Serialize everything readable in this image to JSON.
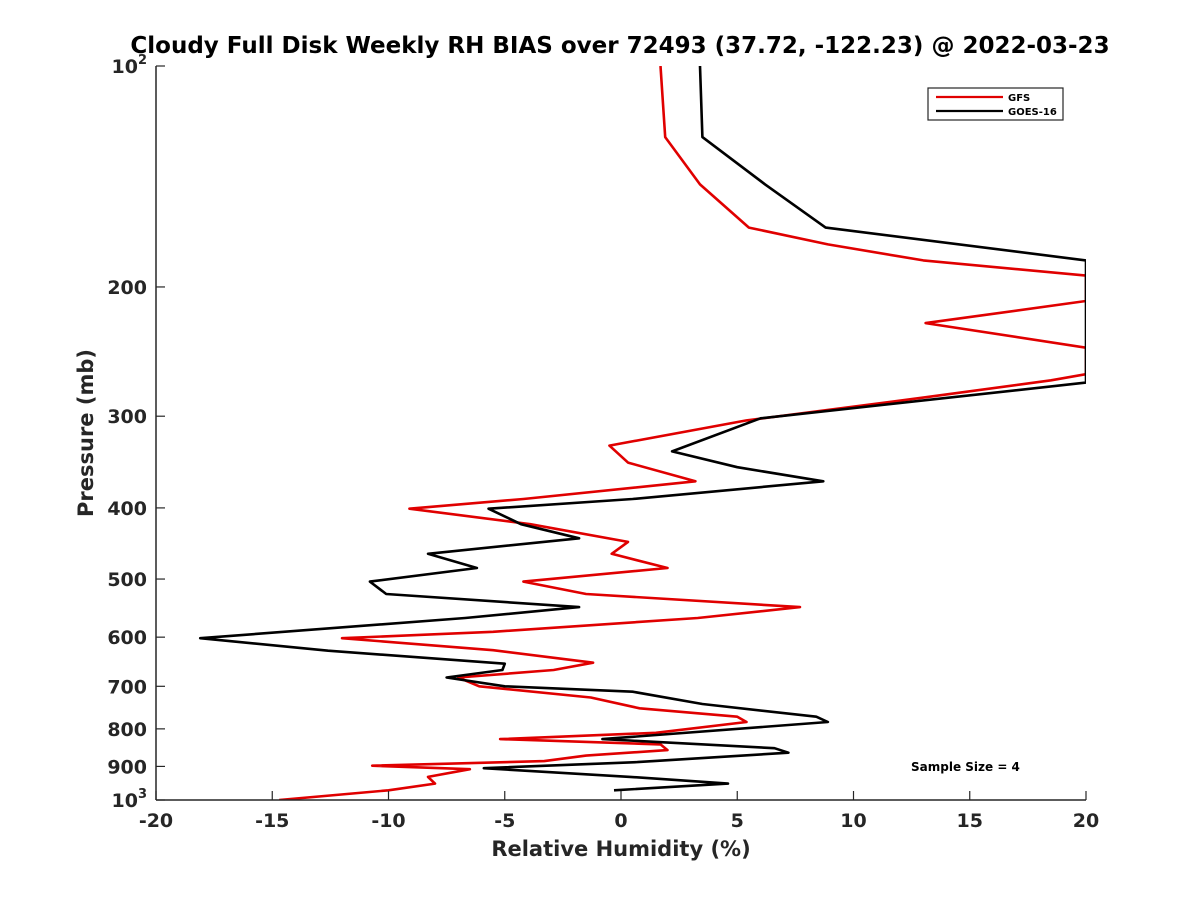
{
  "chart_data": {
    "type": "line",
    "title": "Cloudy Full Disk Weekly RH BIAS over 72493 (37.72, -122.23) @ 2022-03-23",
    "xlabel": "Relative Humidity (%)",
    "ylabel": "Pressure (mb)",
    "xlim": [
      -20,
      20
    ],
    "ylim": [
      1000,
      100
    ],
    "yscale": "log",
    "yreversed": true,
    "x_ticks": [
      -20,
      -15,
      -10,
      -5,
      0,
      5,
      10,
      15,
      20
    ],
    "x_tick_labels": [
      "-20",
      "-15",
      "-10",
      "-5",
      "0",
      "5",
      "10",
      "15",
      "20"
    ],
    "y_ticks": [
      100,
      200,
      300,
      400,
      500,
      600,
      700,
      800,
      900,
      1000
    ],
    "y_tick_labels": [
      {
        "base": "10",
        "exp": "2"
      },
      {
        "base": "200",
        "exp": ""
      },
      {
        "base": "300",
        "exp": ""
      },
      {
        "base": "400",
        "exp": ""
      },
      {
        "base": "500",
        "exp": ""
      },
      {
        "base": "600",
        "exp": ""
      },
      {
        "base": "700",
        "exp": ""
      },
      {
        "base": "800",
        "exp": ""
      },
      {
        "base": "900",
        "exp": ""
      },
      {
        "base": "10",
        "exp": "3"
      }
    ],
    "grid": false,
    "legend_position": "top-right",
    "annotation": "Sample Size = 4",
    "series": [
      {
        "name": "GFS",
        "color": "#e00000",
        "points": [
          [
            1.7,
            100
          ],
          [
            1.9,
            125
          ],
          [
            3.4,
            145
          ],
          [
            5.5,
            166
          ],
          [
            8.9,
            175
          ],
          [
            13.0,
            184
          ],
          [
            20.0,
            193
          ],
          [
            20.0,
            209
          ],
          [
            13.1,
            224
          ],
          [
            20.0,
            242
          ],
          [
            20.0,
            263
          ],
          [
            18.5,
            268
          ],
          [
            13.0,
            283
          ],
          [
            5.4,
            304
          ],
          [
            -0.5,
            329
          ],
          [
            0.3,
            347
          ],
          [
            3.2,
            368
          ],
          [
            -4.2,
            389
          ],
          [
            -9.1,
            401
          ],
          [
            -3.9,
            421
          ],
          [
            0.3,
            445
          ],
          [
            -0.4,
            462
          ],
          [
            2.0,
            483
          ],
          [
            -4.2,
            504
          ],
          [
            -1.5,
            524
          ],
          [
            7.7,
            546
          ],
          [
            3.3,
            565
          ],
          [
            -5.5,
            590
          ],
          [
            -12.0,
            602
          ],
          [
            -5.5,
            625
          ],
          [
            -1.2,
            650
          ],
          [
            -2.9,
            665
          ],
          [
            -7.0,
            681
          ],
          [
            -6.1,
            700
          ],
          [
            -1.3,
            725
          ],
          [
            0.8,
            750
          ],
          [
            5.0,
            770
          ],
          [
            5.4,
            783
          ],
          [
            1.5,
            810
          ],
          [
            -5.2,
            826
          ],
          [
            1.7,
            840
          ],
          [
            2.0,
            855
          ],
          [
            -1.5,
            870
          ],
          [
            -3.3,
            885
          ],
          [
            -10.7,
            898
          ],
          [
            -6.5,
            908
          ],
          [
            -8.3,
            930
          ],
          [
            -8.0,
            950
          ],
          [
            -10.0,
            970
          ],
          [
            -14.7,
            1000
          ]
        ]
      },
      {
        "name": "GOES-16",
        "color": "#000000",
        "points": [
          [
            3.4,
            100
          ],
          [
            3.5,
            125
          ],
          [
            6.2,
            145
          ],
          [
            8.8,
            166
          ],
          [
            20.0,
            184
          ],
          [
            20.0,
            270
          ],
          [
            6.0,
            302
          ],
          [
            2.2,
            335
          ],
          [
            5.0,
            352
          ],
          [
            8.7,
            368
          ],
          [
            0.5,
            389
          ],
          [
            -5.7,
            401
          ],
          [
            -4.3,
            421
          ],
          [
            -1.8,
            440
          ],
          [
            -8.3,
            462
          ],
          [
            -6.2,
            483
          ],
          [
            -10.8,
            504
          ],
          [
            -10.1,
            524
          ],
          [
            -1.8,
            546
          ],
          [
            -6.7,
            565
          ],
          [
            -18.1,
            602
          ],
          [
            -12.6,
            626
          ],
          [
            -5.0,
            652
          ],
          [
            -5.1,
            665
          ],
          [
            -7.5,
            681
          ],
          [
            -5.0,
            700
          ],
          [
            0.5,
            712
          ],
          [
            3.5,
            740
          ],
          [
            8.4,
            770
          ],
          [
            8.9,
            783
          ],
          [
            -0.8,
            826
          ],
          [
            6.6,
            850
          ],
          [
            7.2,
            862
          ],
          [
            0.7,
            888
          ],
          [
            -5.9,
            905
          ],
          [
            0.4,
            930
          ],
          [
            4.6,
            950
          ],
          [
            -0.3,
            970
          ]
        ]
      }
    ]
  }
}
